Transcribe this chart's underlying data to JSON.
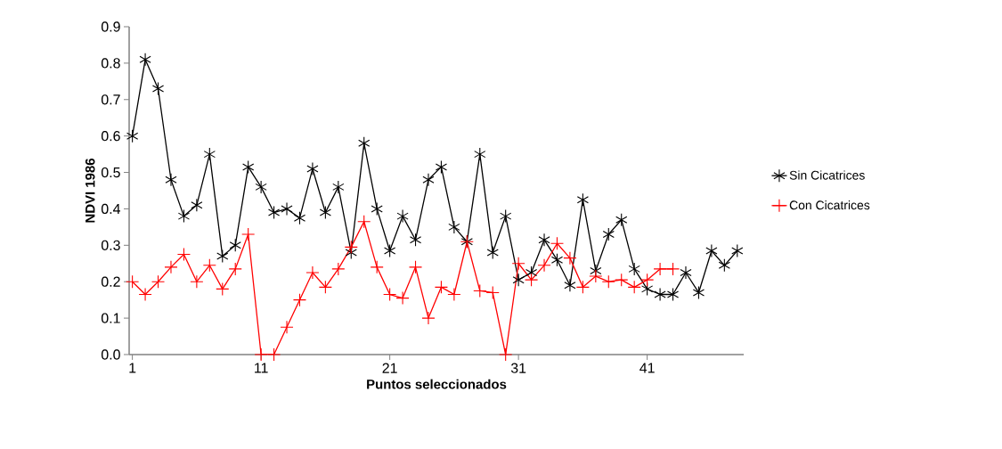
{
  "chart_data": {
    "type": "line",
    "xlabel": "Puntos seleccionados",
    "ylabel": "NDVI 1986",
    "x": [
      1,
      2,
      3,
      4,
      5,
      6,
      7,
      8,
      9,
      10,
      11,
      12,
      13,
      14,
      15,
      16,
      17,
      18,
      19,
      20,
      21,
      22,
      23,
      24,
      25,
      26,
      27,
      28,
      29,
      30,
      31,
      32,
      33,
      34,
      35,
      36,
      37,
      38,
      39,
      40,
      41,
      42,
      43,
      44,
      45,
      46,
      47,
      48
    ],
    "series": [
      {
        "name": "Sin Cicatrices",
        "color": "#000000",
        "marker": "cross",
        "values": [
          0.6,
          0.81,
          0.73,
          0.48,
          0.38,
          0.41,
          0.55,
          0.27,
          0.3,
          0.515,
          0.46,
          0.39,
          0.4,
          0.375,
          0.51,
          0.39,
          0.46,
          0.28,
          0.58,
          0.4,
          0.285,
          0.38,
          0.315,
          0.48,
          0.515,
          0.35,
          0.31,
          0.55,
          0.28,
          0.38,
          0.205,
          0.225,
          0.315,
          0.26,
          0.19,
          0.425,
          0.23,
          0.33,
          0.37,
          0.235,
          0.18,
          0.165,
          0.165,
          0.225,
          0.17,
          0.285,
          0.245,
          0.285
        ]
      },
      {
        "name": "Con Cicatrices",
        "color": "#ff0000",
        "marker": "cross",
        "values": [
          0.2,
          0.165,
          0.2,
          0.24,
          0.275,
          0.2,
          0.245,
          0.18,
          0.235,
          0.33,
          0,
          0,
          0.075,
          0.15,
          0.225,
          0.185,
          0.235,
          0.295,
          0.365,
          0.24,
          0.165,
          0.155,
          0.24,
          0.1,
          0.185,
          0.165,
          0.31,
          0.175,
          0.17,
          0,
          0.25,
          0.205,
          0.245,
          0.305,
          0.265,
          0.185,
          0.215,
          0.2,
          0.205,
          0.185,
          0.205,
          0.235,
          0.235,
          null,
          null,
          null,
          null,
          null
        ]
      }
    ],
    "xlim": [
      0.75,
      48.5
    ],
    "xticks": [
      1,
      11,
      21,
      31,
      41
    ],
    "ylim": [
      0,
      0.9
    ],
    "yticks": [
      {
        "value": 0,
        "label": "0.0"
      },
      0.1,
      0.2,
      0.3,
      0.4,
      0.5,
      0.6,
      0.7,
      0.8,
      0.9
    ],
    "legend": "right"
  }
}
